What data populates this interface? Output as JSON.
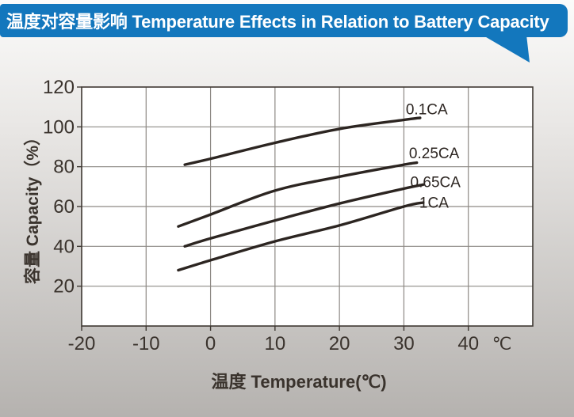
{
  "banner": {
    "title": "温度对容量影响 Temperature Effects in Relation to Battery Capacity"
  },
  "colors": {
    "banner": "#1377bd",
    "banner-text": "#ffffff",
    "page-top": "#fbfbfa",
    "page-bottom": "#b5b2af",
    "plot-bg": "#ffffff",
    "grid": "#8d8984",
    "axis": "#3f3933",
    "curve": "#2c2521",
    "text": "#3a332d"
  },
  "chart_data": {
    "type": "line",
    "title": "温度对容量影响 Temperature Effects in Relation to Battery Capacity",
    "xlabel": "温度  Temperature(℃)",
    "ylabel": "容量 Capacity（%）",
    "x_unit": "℃",
    "xlim": [
      -20,
      50
    ],
    "ylim": [
      0,
      120
    ],
    "x_ticks": [
      -20,
      -10,
      0,
      10,
      20,
      30,
      40
    ],
    "y_ticks": [
      20,
      40,
      60,
      80,
      100,
      120
    ],
    "grid": true,
    "legend_position": "end-of-line labels",
    "series": [
      {
        "name": "0.1CA",
        "points": [
          [
            -4,
            81
          ],
          [
            0,
            84
          ],
          [
            10,
            92
          ],
          [
            20,
            99
          ],
          [
            30,
            103.5
          ],
          [
            32.5,
            104.5
          ]
        ],
        "label_at": [
          30.3,
          108.5
        ]
      },
      {
        "name": "0.25CA",
        "points": [
          [
            -5,
            50
          ],
          [
            0,
            56
          ],
          [
            10,
            68
          ],
          [
            20,
            75
          ],
          [
            30,
            81
          ],
          [
            32,
            82
          ]
        ],
        "label_at": [
          30.8,
          86.5
        ]
      },
      {
        "name": "0.65CA",
        "points": [
          [
            -4,
            40
          ],
          [
            0,
            44
          ],
          [
            10,
            53
          ],
          [
            20,
            61.5
          ],
          [
            30,
            69
          ],
          [
            33,
            71
          ]
        ],
        "label_at": [
          31.0,
          72
        ]
      },
      {
        "name": "1CA",
        "points": [
          [
            -5,
            28
          ],
          [
            0,
            33
          ],
          [
            10,
            42.5
          ],
          [
            20,
            50.5
          ],
          [
            30,
            60
          ],
          [
            33,
            62
          ]
        ],
        "label_at": [
          32.4,
          61.5
        ]
      }
    ]
  }
}
